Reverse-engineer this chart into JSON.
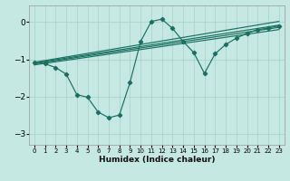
{
  "xlabel": "Humidex (Indice chaleur)",
  "ylabel": "",
  "bg_color": "#c5e8e2",
  "grid_color": "#aad4cc",
  "line_color": "#1a7060",
  "xlim": [
    -0.5,
    23.5
  ],
  "ylim": [
    -3.3,
    0.45
  ],
  "xticks": [
    0,
    1,
    2,
    3,
    4,
    5,
    6,
    7,
    8,
    9,
    10,
    11,
    12,
    13,
    14,
    15,
    16,
    17,
    18,
    19,
    20,
    21,
    22,
    23
  ],
  "yticks": [
    0,
    -1,
    -2,
    -3
  ],
  "main_x": [
    0,
    1,
    2,
    3,
    4,
    5,
    6,
    7,
    8,
    9,
    10,
    11,
    12,
    13,
    14,
    15,
    16,
    17,
    18,
    19,
    20,
    21,
    22,
    23
  ],
  "main_y": [
    -1.08,
    -1.12,
    -1.22,
    -1.4,
    -1.95,
    -2.02,
    -2.42,
    -2.57,
    -2.5,
    -1.62,
    -0.52,
    0.02,
    0.08,
    -0.17,
    -0.52,
    -0.82,
    -1.38,
    -0.85,
    -0.6,
    -0.43,
    -0.3,
    -0.2,
    -0.16,
    -0.1
  ],
  "band_lines": [
    {
      "x0": 0,
      "y0": -1.08,
      "x1": 23,
      "y1": 0.02
    },
    {
      "x0": 0,
      "y0": -1.1,
      "x1": 23,
      "y1": -0.08
    },
    {
      "x0": 0,
      "y0": -1.12,
      "x1": 23,
      "y1": -0.14
    },
    {
      "x0": 0,
      "y0": -1.15,
      "x1": 23,
      "y1": -0.2
    }
  ]
}
